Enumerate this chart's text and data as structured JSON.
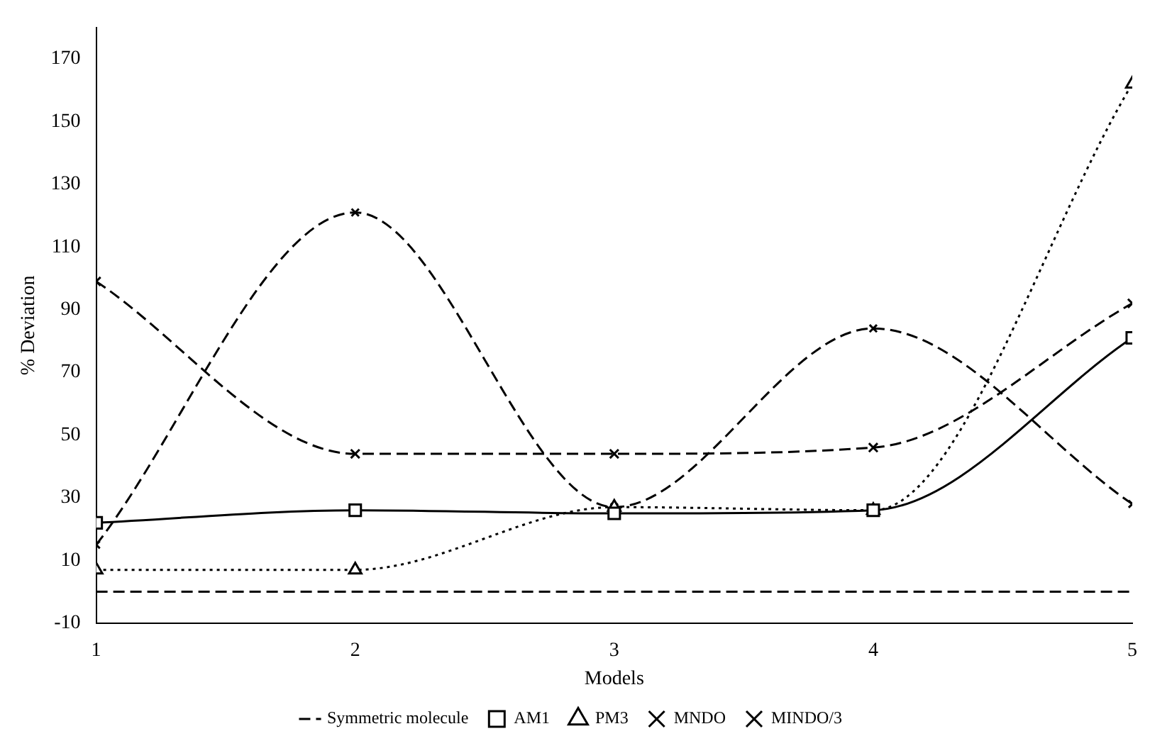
{
  "chart_data": {
    "type": "line",
    "xlabel": "Models",
    "ylabel": "% Deviation",
    "x": [
      1,
      2,
      3,
      4,
      5
    ],
    "xlim": [
      1,
      5
    ],
    "xticks": [
      1,
      2,
      3,
      4,
      5
    ],
    "ylim": [
      -10,
      180
    ],
    "yticks": [
      -10,
      10,
      30,
      50,
      70,
      90,
      110,
      130,
      150,
      170
    ],
    "grid": false,
    "legend": "bottom",
    "series": [
      {
        "name": "Symmetric molecule",
        "color": "#000000",
        "values": [
          0,
          0,
          0,
          0,
          0
        ],
        "marker": "none",
        "line_style": "dashed"
      },
      {
        "name": "AM1",
        "color": "#000000",
        "values": [
          22,
          26,
          25,
          26,
          81
        ],
        "marker": "square",
        "line_style": "solid"
      },
      {
        "name": "PM3",
        "color": "#000000",
        "values": [
          7,
          7,
          27,
          26,
          162
        ],
        "marker": "triangle",
        "line_style": "dotted"
      },
      {
        "name": "MNDO",
        "color": "#000000",
        "values": [
          99,
          44,
          44,
          46,
          92
        ],
        "marker": "cross",
        "line_style": "dashed"
      },
      {
        "name": "MINDO/3",
        "color": "#000000",
        "values": [
          15,
          121,
          27,
          84,
          28
        ],
        "marker": "cross",
        "line_style": "dashed"
      }
    ]
  }
}
